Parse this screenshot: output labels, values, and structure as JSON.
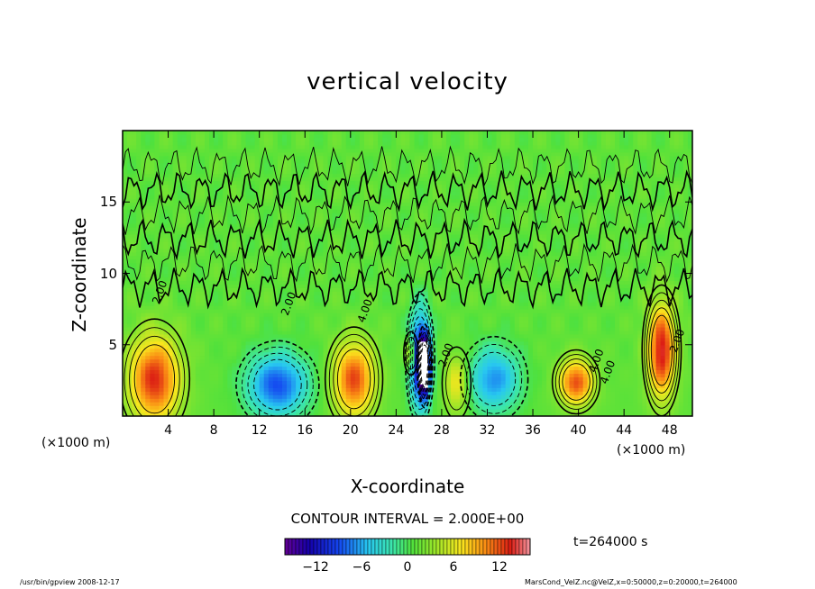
{
  "chart_data": {
    "type": "heatmap",
    "title": "vertical velocity",
    "xlabel": "X-coordinate",
    "ylabel": "Z-coordinate",
    "x_unit_label": "(×1000 m)",
    "xlim": [
      0,
      50
    ],
    "ylim": [
      0,
      20
    ],
    "x_ticks": [
      4,
      8,
      12,
      16,
      20,
      24,
      28,
      32,
      36,
      40,
      44,
      48
    ],
    "y_ticks": [
      5,
      10,
      15
    ],
    "contour_interval_label": "CONTOUR INTERVAL = 2.000E+00",
    "contour_labels": [
      "2.00",
      "2.00",
      "4.00",
      "2.00",
      "4.00",
      "4.00",
      "2.00"
    ],
    "time_label": "t=264000 s",
    "colorbar": {
      "min": -16,
      "max": 16,
      "ticks": [
        -12,
        -6,
        0,
        6,
        12
      ],
      "tick_labels": [
        "−12",
        "−6",
        "0",
        "6",
        "12"
      ]
    },
    "features": [
      {
        "x": 2.8,
        "z": 2.6,
        "value": 12
      },
      {
        "x": 13.6,
        "z": 2.2,
        "value": -10
      },
      {
        "x": 20.3,
        "z": 2.6,
        "value": 11
      },
      {
        "x": 26.1,
        "z": 4.0,
        "value": -14
      },
      {
        "x": 26.5,
        "z": 3.5,
        "value": -17
      },
      {
        "x": 29.3,
        "z": 2.3,
        "value": 6
      },
      {
        "x": 32.6,
        "z": 2.6,
        "value": -8
      },
      {
        "x": 39.8,
        "z": 2.4,
        "value": 11
      },
      {
        "x": 47.3,
        "z": 4.6,
        "value": 13
      },
      {
        "x": 25.3,
        "z": 4.4,
        "value": 7
      }
    ],
    "footer_left": "/usr/bin/gpview   2008-12-17",
    "footer_right": "MarsCond_VelZ.nc@VelZ,x=0:50000,z=0:20000,t=264000"
  }
}
